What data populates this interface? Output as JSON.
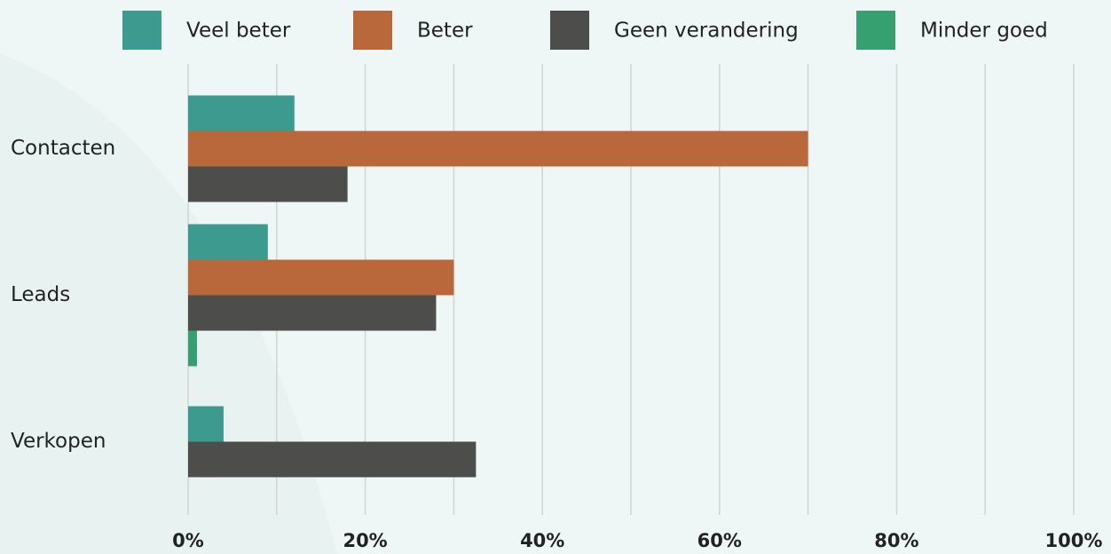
{
  "chart_data": {
    "type": "hbar",
    "categories": [
      "Contacten",
      "Leads",
      "Verkopen"
    ],
    "series": [
      {
        "name": "Veel beter",
        "color": "#3d9a8f",
        "values": [
          12,
          9,
          4
        ]
      },
      {
        "name": "Beter",
        "color": "#b8683b",
        "values": [
          70,
          30,
          null
        ]
      },
      {
        "name": "Geen verandering",
        "color": "#4d4d4b",
        "values": [
          18,
          28,
          32.5
        ]
      },
      {
        "name": "Minder goed",
        "color": "#37a070",
        "values": [
          null,
          1,
          null
        ]
      }
    ],
    "xlim": [
      0,
      100
    ],
    "xticks": [
      {
        "value": 0,
        "label": "0%"
      },
      {
        "value": 20,
        "label": "20%"
      },
      {
        "value": 40,
        "label": "40%"
      },
      {
        "value": 60,
        "label": "60%"
      },
      {
        "value": 80,
        "label": "80%"
      },
      {
        "value": 100,
        "label": "100%"
      }
    ],
    "minor_xticks": [
      10,
      30,
      50,
      70,
      90
    ],
    "grid": true,
    "legend": "top"
  }
}
